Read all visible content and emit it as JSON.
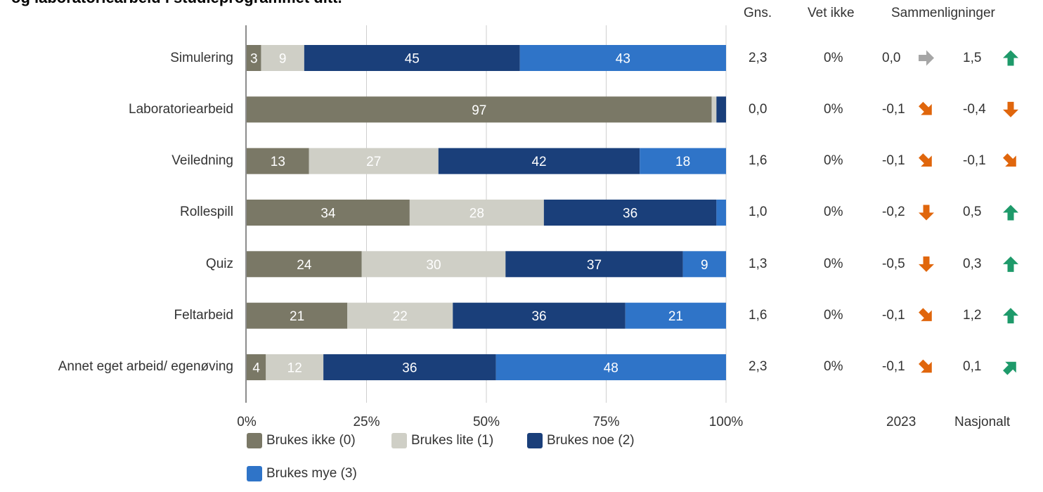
{
  "chart_data": {
    "type": "bar",
    "orientation": "horizontal",
    "stacked": true,
    "title": "og laboratoriearbeid i studieprogrammet ditt.",
    "categories": [
      "Simulering",
      "Laboratoriearbeid",
      "Veiledning",
      "Rollespill",
      "Quiz",
      "Feltarbeid",
      "Annet eget arbeid/ egenøving"
    ],
    "series": [
      {
        "name": "Brukes ikke (0)",
        "color": "#7a7866",
        "label_color": "#ffffff",
        "values": [
          3,
          97,
          13,
          34,
          24,
          21,
          4
        ]
      },
      {
        "name": "Brukes lite (1)",
        "color": "#cfcfc6",
        "label_color": "#ffffff",
        "values": [
          9,
          1,
          27,
          28,
          30,
          22,
          12
        ]
      },
      {
        "name": "Brukes noe (2)",
        "color": "#1a3f7a",
        "label_color": "#ffffff",
        "values": [
          45,
          2,
          42,
          36,
          37,
          36,
          36
        ]
      },
      {
        "name": "Brukes mye (3)",
        "color": "#2f74c8",
        "label_color": "#ffffff",
        "values": [
          43,
          0,
          18,
          2,
          9,
          21,
          48
        ]
      }
    ],
    "data_labels": [
      [
        "3",
        "9",
        "45",
        "43"
      ],
      [
        "97",
        "",
        "",
        ""
      ],
      [
        "13",
        "27",
        "42",
        "18"
      ],
      [
        "34",
        "28",
        "36",
        ""
      ],
      [
        "24",
        "30",
        "37",
        "9"
      ],
      [
        "21",
        "22",
        "36",
        "21"
      ],
      [
        "4",
        "12",
        "36",
        "48"
      ]
    ],
    "xlim": [
      0,
      100
    ],
    "x_ticks": [
      "0%",
      "25%",
      "50%",
      "75%",
      "100%"
    ],
    "grid": true,
    "legend_position": "bottom",
    "table": {
      "headers": {
        "gns": "Gns.",
        "vet_ikke": "Vet ikke",
        "sammenligninger": "Sammenligninger"
      },
      "footers": {
        "year": "2023",
        "national": "Nasjonalt"
      },
      "rows": [
        {
          "gns": "2,3",
          "vet_ikke": "0%",
          "cmp2023": "0,0",
          "dir2023": "flat",
          "cmpNat": "1,5",
          "dirNat": "up"
        },
        {
          "gns": "0,0",
          "vet_ikke": "0%",
          "cmp2023": "-0,1",
          "dir2023": "down-right",
          "cmpNat": "-0,4",
          "dirNat": "down"
        },
        {
          "gns": "1,6",
          "vet_ikke": "0%",
          "cmp2023": "-0,1",
          "dir2023": "down-right",
          "cmpNat": "-0,1",
          "dirNat": "down-right"
        },
        {
          "gns": "1,0",
          "vet_ikke": "0%",
          "cmp2023": "-0,2",
          "dir2023": "down",
          "cmpNat": "0,5",
          "dirNat": "up"
        },
        {
          "gns": "1,3",
          "vet_ikke": "0%",
          "cmp2023": "-0,5",
          "dir2023": "down",
          "cmpNat": "0,3",
          "dirNat": "up"
        },
        {
          "gns": "1,6",
          "vet_ikke": "0%",
          "cmp2023": "-0,1",
          "dir2023": "down-right",
          "cmpNat": "1,2",
          "dirNat": "up"
        },
        {
          "gns": "2,3",
          "vet_ikke": "0%",
          "cmp2023": "-0,1",
          "dir2023": "down-right",
          "cmpNat": "0,1",
          "dirNat": "up-right"
        }
      ]
    },
    "arrow_colors": {
      "flat": "#a6a6a6",
      "down": "#e0660c",
      "down-right": "#e0660c",
      "up": "#1e9a6a",
      "up-right": "#1e9a6a"
    }
  }
}
